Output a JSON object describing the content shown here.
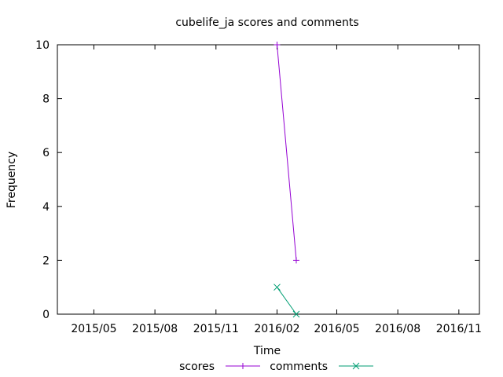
{
  "chart_data": {
    "type": "line",
    "title": "cubelife_ja scores and comments",
    "xlabel": "Time",
    "ylabel": "Frequency",
    "ylim": [
      0,
      10
    ],
    "xlim": [
      "2015-03-07",
      "2016-12-02"
    ],
    "x_ticks": [
      "2015/05",
      "2015/08",
      "2015/11",
      "2016/02",
      "2016/05",
      "2016/08",
      "2016/11"
    ],
    "x_tick_dates": [
      "2015-05-01",
      "2015-08-01",
      "2015-11-01",
      "2016-02-01",
      "2016-05-01",
      "2016-08-01",
      "2016-11-01"
    ],
    "y_ticks": [
      "0",
      "2",
      "4",
      "6",
      "8",
      "10"
    ],
    "legend_position": "bottom",
    "grid": false,
    "series": [
      {
        "name": "scores",
        "color": "#9400d3",
        "marker": "plus",
        "x": [
          "2016-02-01",
          "2016-03-01"
        ],
        "y": [
          10,
          2
        ]
      },
      {
        "name": "comments",
        "color": "#009e73",
        "marker": "cross",
        "x": [
          "2016-02-01",
          "2016-03-01"
        ],
        "y": [
          1,
          0
        ]
      }
    ]
  }
}
